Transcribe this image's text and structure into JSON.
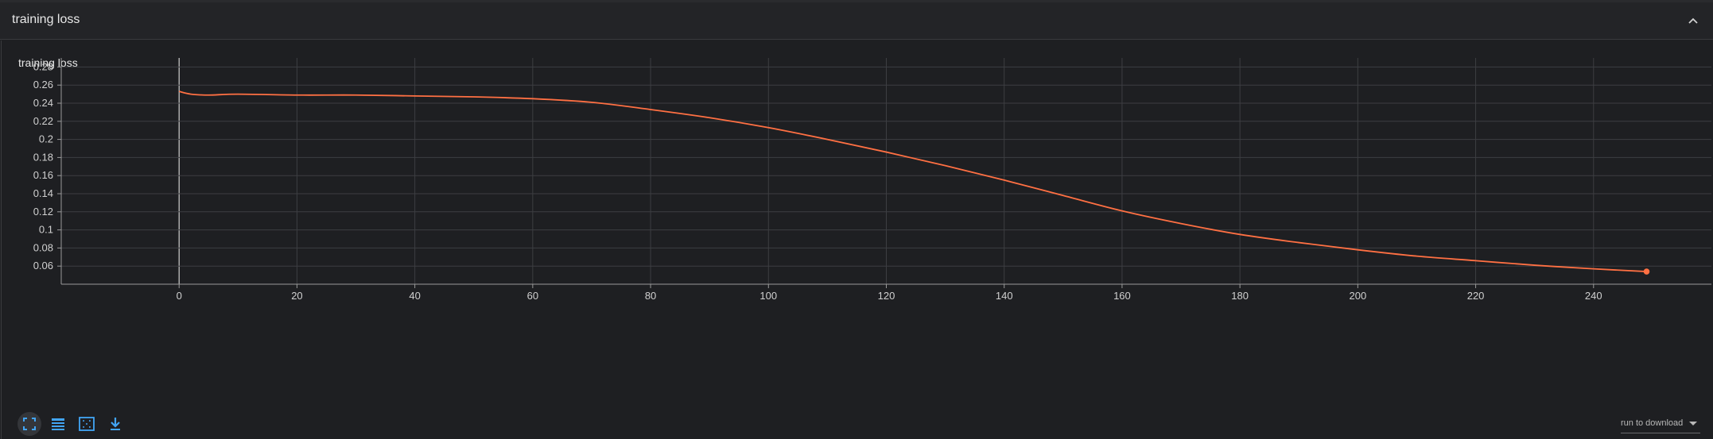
{
  "section": {
    "title": "training loss",
    "collapse_icon": "chevron-up-icon"
  },
  "card": {
    "title": "training loss"
  },
  "toolbar": {
    "buttons": [
      {
        "icon": "fullscreen-icon"
      },
      {
        "icon": "data-table-icon"
      },
      {
        "icon": "fit-domain-icon"
      },
      {
        "icon": "download-icon"
      }
    ],
    "download_label": "run to download"
  },
  "colors": {
    "line": "#ff7043",
    "grid": "#3d3e42",
    "axis": "#9a9a9a",
    "accent": "#42a5f5"
  },
  "chart_data": {
    "type": "line",
    "title": "training loss",
    "xlabel": "",
    "ylabel": "",
    "xlim": [
      -20,
      260
    ],
    "ylim": [
      0.04,
      0.29
    ],
    "x_ticks": [
      0,
      20,
      40,
      60,
      80,
      100,
      120,
      140,
      160,
      180,
      200,
      220,
      240
    ],
    "y_ticks": [
      0.06,
      0.08,
      0.1,
      0.12,
      0.14,
      0.16,
      0.18,
      0.2,
      0.22,
      0.24,
      0.26,
      0.28
    ],
    "grid": true,
    "series": [
      {
        "values_x": [
          0,
          2,
          5,
          10,
          20,
          30,
          40,
          50,
          60,
          70,
          80,
          90,
          100,
          110,
          120,
          130,
          140,
          150,
          160,
          170,
          180,
          190,
          200,
          210,
          220,
          230,
          240,
          249
        ],
        "values_y": [
          0.253,
          0.25,
          0.249,
          0.25,
          0.249,
          0.249,
          0.248,
          0.247,
          0.245,
          0.241,
          0.233,
          0.224,
          0.213,
          0.2,
          0.186,
          0.171,
          0.155,
          0.138,
          0.121,
          0.107,
          0.095,
          0.086,
          0.078,
          0.071,
          0.066,
          0.061,
          0.057,
          0.054
        ]
      }
    ]
  }
}
